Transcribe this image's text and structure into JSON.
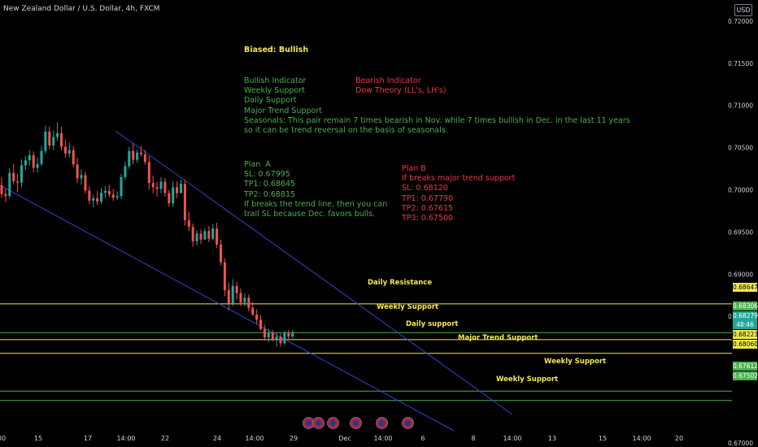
{
  "header": {
    "title": "New Zealand Dollar / U.S. Dollar, 4h, FXCM",
    "currency": "USD"
  },
  "notes": {
    "bias": "Biased: Bullish",
    "bullish": "Bullish Indicator\nWeekly Support\nDaily Support\nMajor Trend Support\nSeasonals: This pair remain 7 times bearish in Nov. while 7 times bullish in Dec. in the last 11 years\nso it can be trend reversal on the basis of seasonals.",
    "bearish": "Bearish Indicator\nDow Theory (LL's, LH's)",
    "plan_a": "Plan  A\nSL: 0.67995\nTP1: 0.68645\nTP2: 0.68815\nIf breaks the trend line, then you can\ntrail SL because Dec. favors bulls.",
    "plan_b": "Plan B\nIf breaks major trend support\nSL: 0.68120\nTP1: 0.67790\nTP2: 0.67615\nTP3: 0.67500"
  },
  "levels": {
    "daily_resistance": "Daily Resistance",
    "weekly_support_1": "Weekly Support",
    "daily_support": "Daily support",
    "major_trend_support": "Major Trend Support",
    "weekly_support_2": "Weekly Support",
    "weekly_support_3": "Weekly Support"
  },
  "price_tags": {
    "t1": "0.68647",
    "t2": "0.68306",
    "t3": "0.68279",
    "t4": "48:46",
    "t5": "0.68223",
    "t6": "0.68060",
    "t7": "0.67612",
    "t8": "0.67502"
  },
  "colors": {
    "up": "#26a69a",
    "down": "#ef5350",
    "level_yellow": "#f5e84a",
    "level_green": "#4caf50",
    "trendline": "#3344cc"
  },
  "chart_data": {
    "type": "candlestick",
    "ylim": [
      0.6695,
      0.7225
    ],
    "yticks": [
      "0.72000",
      "0.71500",
      "0.71000",
      "0.70500",
      "0.70000",
      "0.69500",
      "0.69000",
      "0.68500",
      "0.67000"
    ],
    "xticks": [
      "00",
      "15",
      "17",
      "14:00",
      "22",
      "24",
      "14:00",
      "29",
      "Dec",
      "14:00",
      "6",
      "8",
      "14:00",
      "13",
      "15",
      "14:00",
      "20"
    ],
    "horizontal_levels": [
      0.68647,
      0.68306,
      0.68223,
      0.6806,
      0.67612,
      0.67502
    ],
    "candles": [
      [
        0.70055,
        0.7015,
        0.69905,
        0.6995
      ],
      [
        0.6995,
        0.7001,
        0.69855,
        0.69925
      ],
      [
        0.69925,
        0.70255,
        0.699,
        0.702
      ],
      [
        0.702,
        0.7031,
        0.70065,
        0.701
      ],
      [
        0.701,
        0.70185,
        0.6997,
        0.70085
      ],
      [
        0.70085,
        0.7036,
        0.7003,
        0.7029
      ],
      [
        0.7029,
        0.704,
        0.70235,
        0.7035
      ],
      [
        0.7035,
        0.7047,
        0.70285,
        0.7041
      ],
      [
        0.7041,
        0.70455,
        0.70205,
        0.7026
      ],
      [
        0.7026,
        0.7038,
        0.70205,
        0.70305
      ],
      [
        0.70305,
        0.7052,
        0.70285,
        0.7046
      ],
      [
        0.7046,
        0.7076,
        0.7043,
        0.7069
      ],
      [
        0.7069,
        0.7075,
        0.7048,
        0.70525
      ],
      [
        0.70525,
        0.70705,
        0.7047,
        0.70625
      ],
      [
        0.70625,
        0.708,
        0.7058,
        0.7067
      ],
      [
        0.7067,
        0.70745,
        0.70465,
        0.7051
      ],
      [
        0.7051,
        0.7059,
        0.7038,
        0.7043
      ],
      [
        0.7043,
        0.7056,
        0.70385,
        0.7047
      ],
      [
        0.7047,
        0.70515,
        0.7027,
        0.703
      ],
      [
        0.703,
        0.7038,
        0.7008,
        0.70135
      ],
      [
        0.70135,
        0.70245,
        0.7006,
        0.70175
      ],
      [
        0.70175,
        0.70215,
        0.69955,
        0.6999
      ],
      [
        0.6999,
        0.7004,
        0.6983,
        0.6987
      ],
      [
        0.6987,
        0.6994,
        0.69795,
        0.699
      ],
      [
        0.699,
        0.69985,
        0.6982,
        0.6986
      ],
      [
        0.6986,
        0.7002,
        0.6983,
        0.69965
      ],
      [
        0.69965,
        0.70045,
        0.69905,
        0.69985
      ],
      [
        0.69985,
        0.7006,
        0.69915,
        0.69945
      ],
      [
        0.69945,
        0.7001,
        0.6987,
        0.69905
      ],
      [
        0.69905,
        0.6998,
        0.6988,
        0.69925
      ],
      [
        0.69925,
        0.70185,
        0.6989,
        0.7015
      ],
      [
        0.7015,
        0.7033,
        0.7012,
        0.7028
      ],
      [
        0.7028,
        0.7051,
        0.7025,
        0.7046
      ],
      [
        0.7046,
        0.70555,
        0.703,
        0.70355
      ],
      [
        0.70355,
        0.70475,
        0.7032,
        0.7044
      ],
      [
        0.7044,
        0.7052,
        0.70395,
        0.7042
      ],
      [
        0.7042,
        0.70475,
        0.70295,
        0.7033
      ],
      [
        0.7033,
        0.704,
        0.7,
        0.7008
      ],
      [
        0.7008,
        0.7017,
        0.6996,
        0.7003
      ],
      [
        0.7003,
        0.7009,
        0.6992,
        0.7001
      ],
      [
        0.7001,
        0.7015,
        0.6996,
        0.70095
      ],
      [
        0.70095,
        0.7014,
        0.6992,
        0.6996
      ],
      [
        0.6996,
        0.7,
        0.698,
        0.6984
      ],
      [
        0.6984,
        0.701,
        0.698,
        0.7003
      ],
      [
        0.7003,
        0.701,
        0.699,
        0.6996
      ],
      [
        0.6996,
        0.7012,
        0.6996,
        0.7007
      ],
      [
        0.7007,
        0.7012,
        0.69575,
        0.6964
      ],
      [
        0.6964,
        0.6974,
        0.6951,
        0.6956
      ],
      [
        0.6956,
        0.696,
        0.69325,
        0.6939
      ],
      [
        0.6939,
        0.6952,
        0.6934,
        0.6948
      ],
      [
        0.6948,
        0.6953,
        0.6936,
        0.6941
      ],
      [
        0.6941,
        0.69545,
        0.69405,
        0.6951
      ],
      [
        0.6951,
        0.6957,
        0.6938,
        0.6942
      ],
      [
        0.6942,
        0.69595,
        0.694,
        0.6954
      ],
      [
        0.6954,
        0.6961,
        0.6931,
        0.6935
      ],
      [
        0.6935,
        0.6941,
        0.69105,
        0.6914
      ],
      [
        0.6914,
        0.6919,
        0.6874,
        0.6881
      ],
      [
        0.6881,
        0.689,
        0.6857,
        0.6865
      ],
      [
        0.6865,
        0.6894,
        0.6862,
        0.6886
      ],
      [
        0.6886,
        0.6891,
        0.687,
        0.68775
      ],
      [
        0.68775,
        0.6883,
        0.6862,
        0.6866
      ],
      [
        0.6866,
        0.6877,
        0.6862,
        0.6872
      ],
      [
        0.6872,
        0.6876,
        0.6856,
        0.686
      ],
      [
        0.686,
        0.6867,
        0.685,
        0.6852
      ],
      [
        0.6852,
        0.6858,
        0.6841,
        0.6846
      ],
      [
        0.6846,
        0.6851,
        0.6833,
        0.6835
      ],
      [
        0.6835,
        0.684,
        0.6821,
        0.6825
      ],
      [
        0.6825,
        0.6835,
        0.6819,
        0.683
      ],
      [
        0.683,
        0.6834,
        0.682,
        0.6823
      ],
      [
        0.6823,
        0.683,
        0.6814,
        0.6826
      ],
      [
        0.6826,
        0.683,
        0.6814,
        0.6818
      ],
      [
        0.6818,
        0.6833,
        0.6816,
        0.683
      ],
      [
        0.683,
        0.6834,
        0.6822,
        0.6826
      ],
      [
        0.6826,
        0.6834,
        0.6824,
        0.68306
      ]
    ]
  }
}
